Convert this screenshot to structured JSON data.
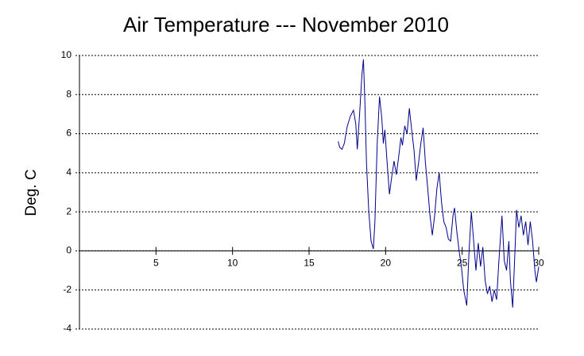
{
  "chart_data": {
    "type": "line",
    "title": "Air Temperature --- November 2010",
    "ylabel": "Deg. C",
    "xlim": [
      0,
      30
    ],
    "xticks": [
      5,
      10,
      15,
      20,
      25,
      30
    ],
    "ylim": [
      -4,
      10
    ],
    "yticks": [
      -4,
      -2,
      0,
      2,
      4,
      6,
      8,
      10
    ],
    "grid": true,
    "series": [
      {
        "color": "#00008b",
        "x": [
          16.9,
          17.0,
          17.15,
          17.3,
          17.5,
          17.7,
          17.9,
          18.05,
          18.15,
          18.3,
          18.45,
          18.55,
          18.65,
          18.75,
          18.9,
          19.05,
          19.2,
          19.3,
          19.45,
          19.6,
          19.75,
          19.85,
          19.95,
          20.1,
          20.25,
          20.4,
          20.55,
          20.7,
          20.85,
          21.0,
          21.1,
          21.25,
          21.4,
          21.55,
          21.7,
          21.85,
          22.0,
          22.15,
          22.3,
          22.45,
          22.6,
          22.75,
          22.9,
          23.05,
          23.2,
          23.35,
          23.5,
          23.65,
          23.8,
          23.95,
          24.1,
          24.25,
          24.4,
          24.5,
          24.65,
          24.8,
          24.95,
          25.1,
          25.3,
          25.45,
          25.6,
          25.75,
          25.9,
          26.05,
          26.2,
          26.35,
          26.5,
          26.65,
          26.8,
          26.95,
          27.1,
          27.25,
          27.4,
          27.6,
          27.75,
          27.9,
          28.05,
          28.15,
          28.3,
          28.45,
          28.55,
          28.7,
          28.85,
          29.0,
          29.15,
          29.3,
          29.45,
          29.6,
          29.75,
          29.85,
          30.0
        ],
        "values": [
          5.6,
          5.3,
          5.2,
          5.5,
          6.4,
          6.9,
          7.2,
          6.5,
          5.2,
          7.0,
          9.0,
          9.8,
          7.5,
          4.5,
          2.0,
          0.5,
          0.1,
          1.5,
          5.5,
          7.9,
          6.8,
          5.5,
          6.2,
          4.5,
          2.9,
          3.8,
          4.6,
          3.9,
          4.8,
          5.8,
          5.4,
          6.4,
          6.0,
          7.3,
          6.2,
          5.2,
          3.6,
          4.5,
          5.5,
          6.3,
          4.5,
          3.2,
          1.8,
          0.8,
          1.8,
          3.2,
          4.0,
          2.5,
          1.5,
          1.2,
          0.6,
          0.5,
          1.8,
          2.2,
          1.0,
          0.0,
          -0.8,
          -2.0,
          -2.8,
          0.0,
          2.0,
          0.5,
          -1.0,
          0.4,
          -0.8,
          0.2,
          -1.5,
          -2.2,
          -1.8,
          -2.6,
          -2.0,
          -2.5,
          -0.5,
          1.8,
          -0.5,
          -1.0,
          0.5,
          -1.5,
          -2.9,
          0.0,
          2.1,
          1.2,
          1.8,
          0.8,
          1.5,
          0.3,
          1.5,
          0.5,
          -1.0,
          -1.6,
          -0.8
        ]
      }
    ]
  }
}
